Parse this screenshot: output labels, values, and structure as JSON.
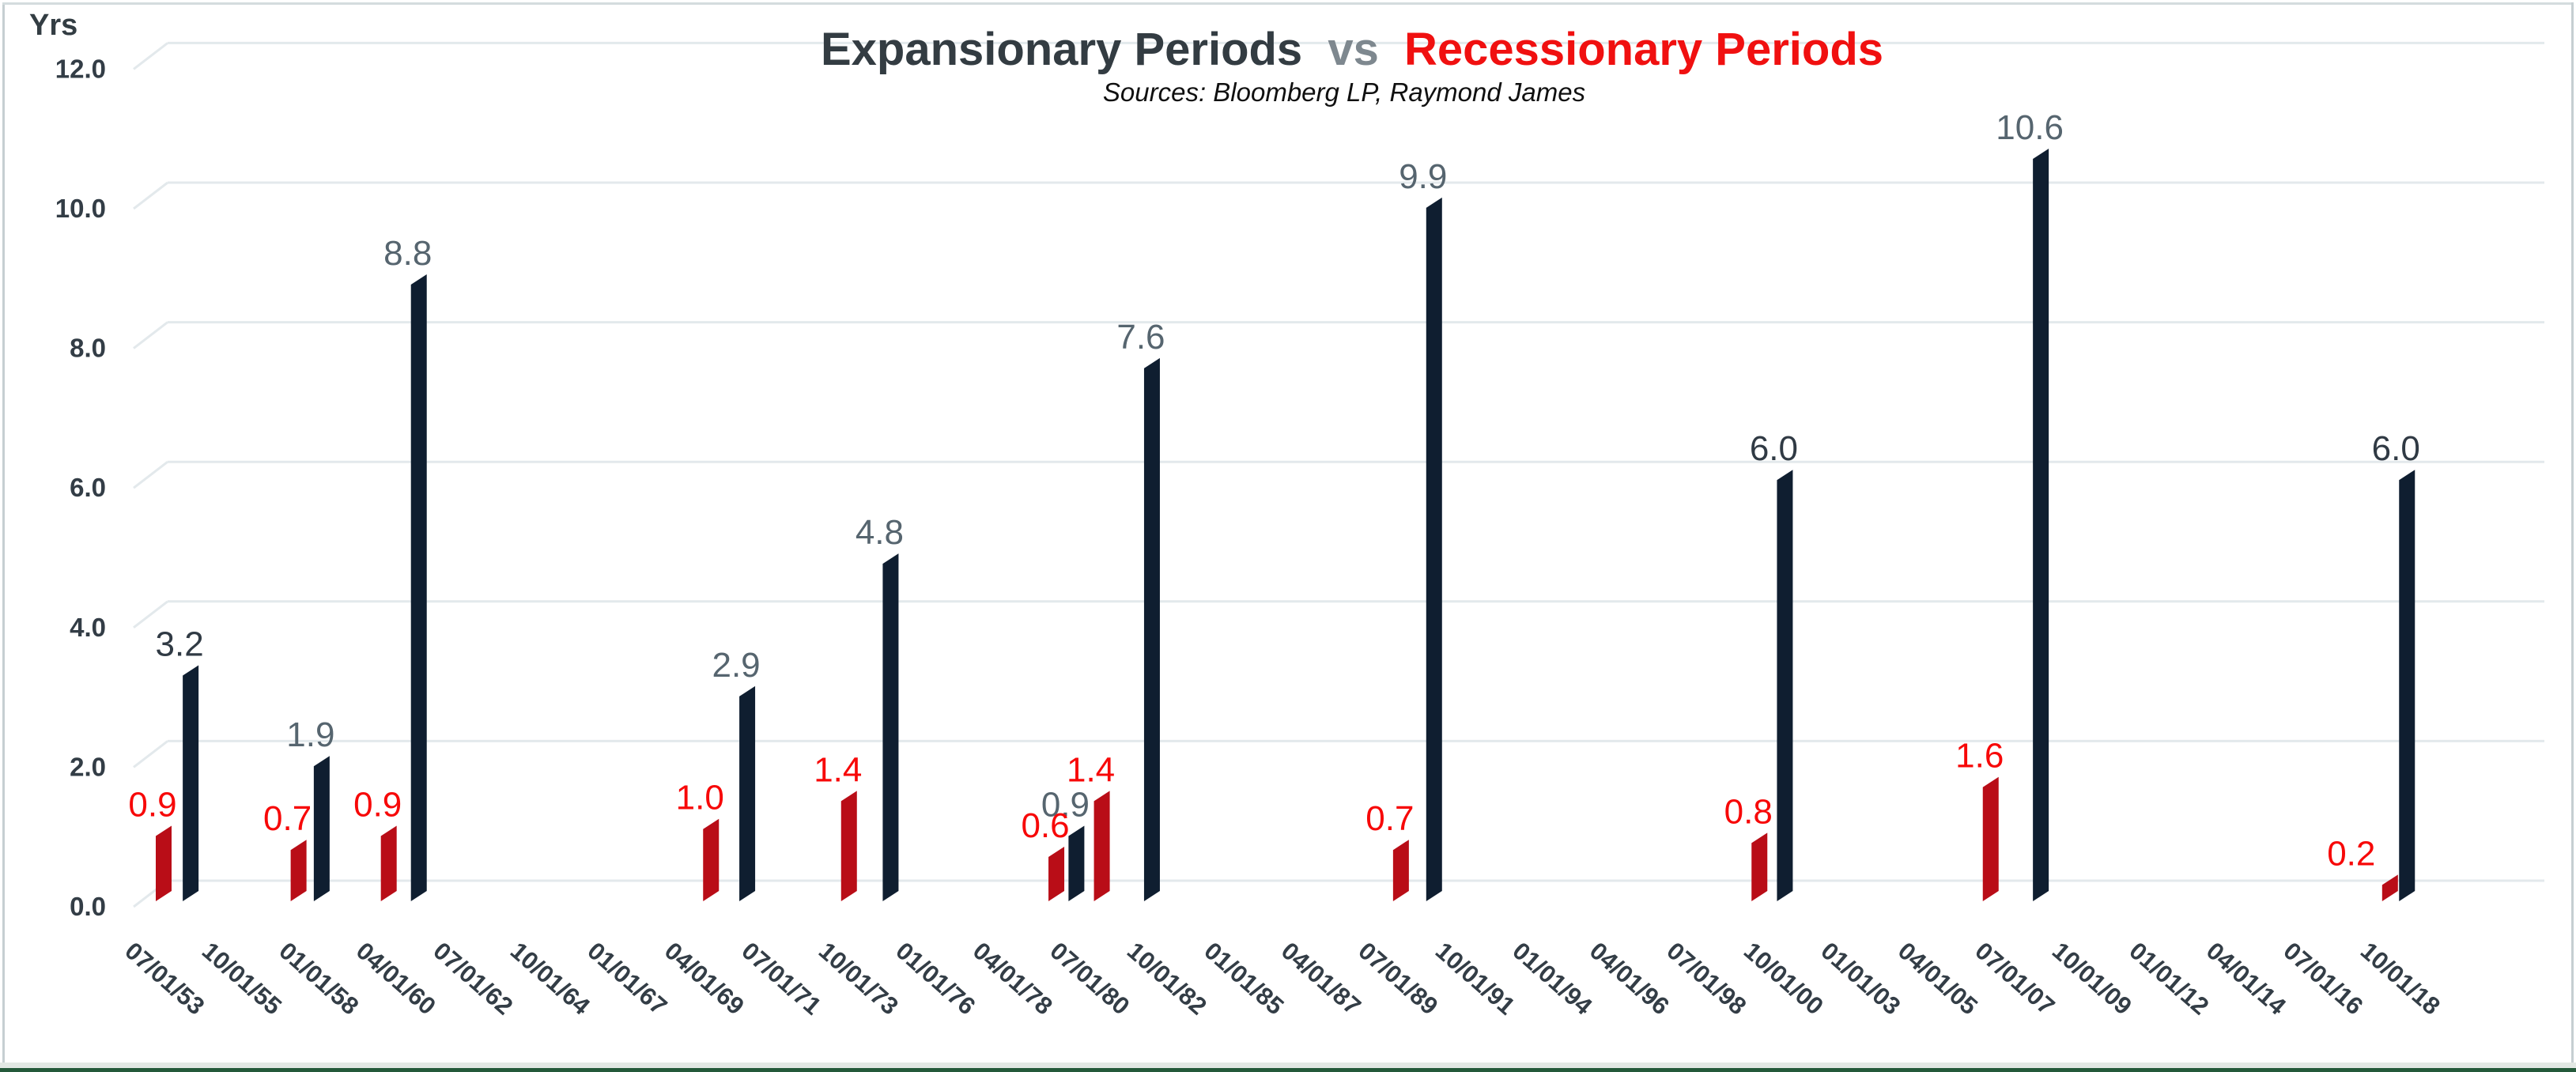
{
  "chart_data": {
    "type": "bar",
    "style": "3d-skewed-columns",
    "title": {
      "part1": "Expansionary Periods",
      "vs": "vs",
      "part2": "Recessionary Periods",
      "part1_color": "#333c42",
      "vs_color": "#7e888f",
      "part2_color": "#f01010"
    },
    "subtitle": "Sources: Bloomberg LP, Raymond James",
    "background_color": "#ffffff",
    "gridline_color": "#e3e9ec",
    "grid": true,
    "legend": "none",
    "y_axis": {
      "label": "Yrs",
      "min": 0,
      "max": 12,
      "ticks": [
        {
          "label": "0.0",
          "value": 0
        },
        {
          "label": "2.0",
          "value": 2
        },
        {
          "label": "4.0",
          "value": 4
        },
        {
          "label": "6.0",
          "value": 6
        },
        {
          "label": "8.0",
          "value": 8
        },
        {
          "label": "10.0",
          "value": 10
        },
        {
          "label": "12.0",
          "value": 12
        }
      ]
    },
    "x_axis": {
      "ticks": [
        "07/01/53",
        "10/01/55",
        "01/01/58",
        "04/01/60",
        "07/01/62",
        "10/01/64",
        "01/01/67",
        "04/01/69",
        "07/01/71",
        "10/01/73",
        "01/01/76",
        "04/01/78",
        "07/01/80",
        "10/01/82",
        "01/01/85",
        "04/01/87",
        "07/01/89",
        "10/01/91",
        "01/01/94",
        "04/01/96",
        "07/01/98",
        "10/01/00",
        "01/01/03",
        "04/01/05",
        "07/01/07",
        "10/01/09",
        "01/01/12",
        "04/01/14",
        "07/01/16",
        "10/01/18"
      ]
    },
    "series": [
      {
        "name": "Recessionary Periods",
        "bar_color": "#b90d17",
        "label_color": "#f70808",
        "points": [
          {
            "pos": 0.0,
            "value": 0.9
          },
          {
            "pos": 1.75,
            "value": 0.7
          },
          {
            "pos": 2.92,
            "value": 0.9
          },
          {
            "pos": 7.1,
            "value": 1.0
          },
          {
            "pos": 8.89,
            "value": 1.4
          },
          {
            "pos": 11.58,
            "value": 0.6
          },
          {
            "pos": 12.17,
            "value": 1.4
          },
          {
            "pos": 16.05,
            "value": 0.7
          },
          {
            "pos": 20.7,
            "value": 0.8
          },
          {
            "pos": 23.7,
            "value": 1.6
          },
          {
            "pos": 28.88,
            "value": 0.2,
            "label_dx": -35
          }
        ]
      },
      {
        "name": "Expansionary Periods",
        "bar_color": "#0f1e30",
        "label_color": "#56656f",
        "points": [
          {
            "pos": 0.35,
            "value": 3.2,
            "label_color": "#303a44"
          },
          {
            "pos": 2.05,
            "value": 1.9
          },
          {
            "pos": 3.31,
            "value": 8.8
          },
          {
            "pos": 7.57,
            "value": 2.9
          },
          {
            "pos": 9.43,
            "value": 4.8
          },
          {
            "pos": 11.84,
            "value": 0.9
          },
          {
            "pos": 12.82,
            "value": 7.6
          },
          {
            "pos": 16.48,
            "value": 9.9
          },
          {
            "pos": 21.03,
            "value": 6.0,
            "label_color": "#303a44"
          },
          {
            "pos": 24.35,
            "value": 10.6
          },
          {
            "pos": 29.1,
            "value": 6.0,
            "label_color": "#303a44"
          }
        ]
      }
    ],
    "frame": {
      "border_color": "#c6cfd2",
      "bottom_band_color": "#e2e8e4",
      "bottom_line_color": "#24593a"
    }
  }
}
